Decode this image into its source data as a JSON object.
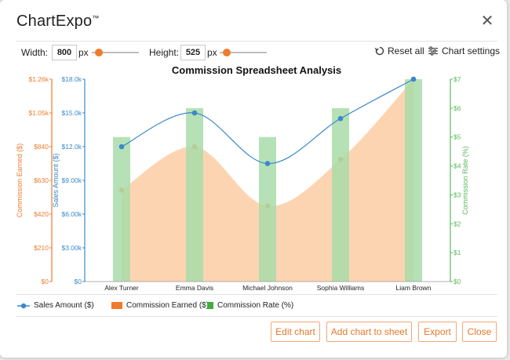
{
  "app": {
    "title": "ChartExpo",
    "trademark": "™"
  },
  "toolbar": {
    "width_label": "Width:",
    "width_value": "800",
    "width_unit": "px",
    "height_label": "Height:",
    "height_value": "525",
    "height_unit": "px",
    "reset_label": "Reset all",
    "settings_label": "Chart settings"
  },
  "colors": {
    "orange": "#f07b2d",
    "blue": "#3a89c9",
    "green": "#5cb85c",
    "area": "#fdd2ae",
    "bar": "#a9dca9"
  },
  "chart_data": {
    "type": "bar",
    "title": "Commission Spreadsheet Analysis",
    "categories": [
      "Alex Turner",
      "Emma Davis",
      "Michael Johnson",
      "Sophia Williams",
      "Liam Brown"
    ],
    "series": [
      {
        "name": "Sales Amount ($)",
        "kind": "line",
        "axis": "left-inner",
        "values": [
          12000,
          15000,
          10500,
          14500,
          18000
        ]
      },
      {
        "name": "Commission Earned ($)",
        "kind": "area",
        "axis": "left-outer",
        "values": [
          570,
          840,
          470,
          760,
          1260
        ]
      },
      {
        "name": "Commission Rate (%)",
        "kind": "bar",
        "axis": "right",
        "values": [
          5,
          6,
          5,
          6,
          7
        ]
      }
    ],
    "axes": {
      "left_outer": {
        "label": "Commission Earned ($)",
        "ticks": [
          "$0",
          "$210",
          "$420",
          "$630",
          "$840",
          "$1.05k",
          "$1.26k"
        ],
        "range": [
          0,
          1260
        ]
      },
      "left_inner": {
        "label": "Sales Amount ($)",
        "ticks": [
          "$0",
          "$3.00k",
          "$6.00k",
          "$9.00k",
          "$12.0k",
          "$15.0k",
          "$18.0k"
        ],
        "range": [
          0,
          18000
        ]
      },
      "right": {
        "label": "Commission Rate (%)",
        "ticks": [
          "$0",
          "$1",
          "$2",
          "$3",
          "$4",
          "$5",
          "$6",
          "$7"
        ],
        "range": [
          0,
          7
        ]
      }
    },
    "legend_position": "bottom-left"
  },
  "footer": {
    "edit_label": "Edit chart",
    "add_label": "Add chart to sheet",
    "export_label": "Export",
    "close_label": "Close"
  }
}
